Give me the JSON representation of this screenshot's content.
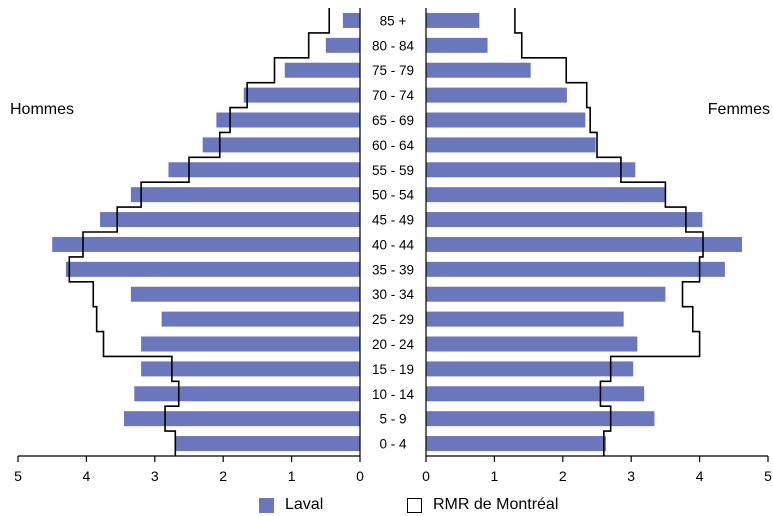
{
  "side_labels": {
    "left": "Hommes",
    "right": "Femmes"
  },
  "legend": {
    "laval": "Laval",
    "rmr": "RMR de Montréal"
  },
  "colors": {
    "laval_bar": "#6b77bd",
    "rmr_outline": "#000000"
  },
  "chart_data": {
    "type": "bar",
    "orientation": "horizontal",
    "subtype": "population-pyramid",
    "categories": [
      "85 +",
      "80 - 84",
      "75 - 79",
      "70 - 74",
      "65 - 69",
      "60 - 64",
      "55 - 59",
      "50 - 54",
      "45 - 49",
      "40 - 44",
      "35 - 39",
      "30 - 34",
      "25 - 29",
      "20 - 24",
      "15 - 19",
      "10 - 14",
      "5 - 9",
      "0 - 4"
    ],
    "xlim": [
      0,
      5
    ],
    "ticks": [
      "0",
      "1",
      "2",
      "3",
      "4",
      "5"
    ],
    "grid": false,
    "legend_position": "bottom",
    "series": [
      {
        "name": "Laval",
        "side": "Hommes",
        "style": "bar",
        "values": [
          0.25,
          0.5,
          1.1,
          1.7,
          2.1,
          2.3,
          2.8,
          3.35,
          3.8,
          4.5,
          4.3,
          3.35,
          2.9,
          3.2,
          3.2,
          3.3,
          3.45,
          2.7
        ]
      },
      {
        "name": "RMR de Montréal",
        "side": "Hommes",
        "style": "outline",
        "values": [
          0.45,
          0.75,
          1.25,
          1.65,
          1.9,
          2.05,
          2.5,
          3.2,
          3.55,
          4.05,
          4.25,
          3.9,
          3.85,
          3.75,
          2.75,
          2.65,
          2.85,
          2.7
        ]
      },
      {
        "name": "Laval",
        "side": "Femmes",
        "style": "bar",
        "values": [
          0.78,
          0.9,
          1.53,
          2.06,
          2.33,
          2.48,
          3.06,
          3.49,
          4.04,
          4.62,
          4.37,
          3.5,
          2.89,
          3.09,
          3.03,
          3.19,
          3.34,
          2.63
        ]
      },
      {
        "name": "RMR de Montréal",
        "side": "Femmes",
        "style": "outline",
        "values": [
          1.3,
          1.4,
          2.05,
          2.35,
          2.4,
          2.5,
          2.85,
          3.5,
          3.8,
          4.05,
          4.0,
          3.75,
          3.9,
          4.0,
          2.7,
          2.55,
          2.7,
          2.6
        ]
      }
    ]
  }
}
